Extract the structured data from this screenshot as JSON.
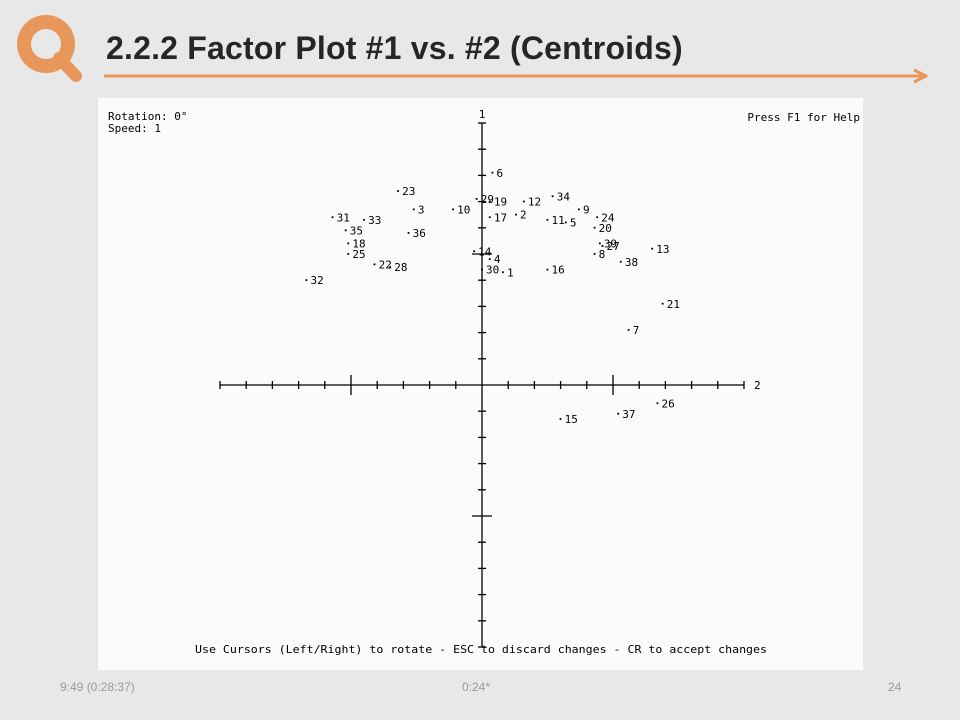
{
  "slide": {
    "title": "2.2.2 Factor Plot #1 vs. #2 (Centroids)",
    "accent_color": "#e8975a",
    "logo_icon": "q-letter-logo",
    "footer": {
      "left": "9:49  (0:28:37)",
      "center": "0:24*",
      "right": "24"
    }
  },
  "screen": {
    "rotation_label": "Rotation: 0°",
    "speed_label": "Speed: 1",
    "help_label": "Press F1 for Help",
    "instructions": "Use Cursors (Left/Right) to rotate - ESC to discard changes - CR to accept changes"
  },
  "chart_data": {
    "type": "scatter",
    "title": "",
    "xlabel": "2",
    "ylabel": "1",
    "xlim": [
      -1,
      1
    ],
    "ylim": [
      -1,
      1
    ],
    "grid": false,
    "points": [
      {
        "label": "1",
        "x": 0.08,
        "y": 0.43
      },
      {
        "label": "2",
        "x": 0.13,
        "y": 0.65
      },
      {
        "label": "3",
        "x": -0.26,
        "y": 0.67
      },
      {
        "label": "4",
        "x": 0.03,
        "y": 0.48
      },
      {
        "label": "5",
        "x": 0.32,
        "y": 0.62
      },
      {
        "label": "6",
        "x": 0.04,
        "y": 0.81
      },
      {
        "label": "7",
        "x": 0.56,
        "y": 0.21
      },
      {
        "label": "8",
        "x": 0.43,
        "y": 0.5
      },
      {
        "label": "9",
        "x": 0.37,
        "y": 0.67
      },
      {
        "label": "10",
        "x": -0.11,
        "y": 0.67
      },
      {
        "label": "11",
        "x": 0.25,
        "y": 0.63
      },
      {
        "label": "12",
        "x": 0.16,
        "y": 0.7
      },
      {
        "label": "13",
        "x": 0.65,
        "y": 0.52
      },
      {
        "label": "14",
        "x": -0.03,
        "y": 0.51
      },
      {
        "label": "15",
        "x": 0.3,
        "y": -0.13
      },
      {
        "label": "16",
        "x": 0.25,
        "y": 0.44
      },
      {
        "label": "17",
        "x": 0.03,
        "y": 0.64
      },
      {
        "label": "18",
        "x": -0.51,
        "y": 0.54
      },
      {
        "label": "19",
        "x": 0.03,
        "y": 0.7
      },
      {
        "label": "20",
        "x": 0.43,
        "y": 0.6
      },
      {
        "label": "21",
        "x": 0.69,
        "y": 0.31
      },
      {
        "label": "22",
        "x": -0.41,
        "y": 0.46
      },
      {
        "label": "23",
        "x": -0.32,
        "y": 0.74
      },
      {
        "label": "24",
        "x": 0.44,
        "y": 0.64
      },
      {
        "label": "25",
        "x": -0.51,
        "y": 0.5
      },
      {
        "label": "26",
        "x": 0.67,
        "y": -0.07
      },
      {
        "label": "27",
        "x": 0.46,
        "y": 0.53
      },
      {
        "label": "28",
        "x": -0.35,
        "y": 0.45
      },
      {
        "label": "29",
        "x": -0.02,
        "y": 0.71
      },
      {
        "label": "30",
        "x": 0.0,
        "y": 0.44
      },
      {
        "label": "31",
        "x": -0.57,
        "y": 0.64
      },
      {
        "label": "32",
        "x": -0.67,
        "y": 0.4
      },
      {
        "label": "33",
        "x": -0.45,
        "y": 0.63
      },
      {
        "label": "34",
        "x": 0.27,
        "y": 0.72
      },
      {
        "label": "35",
        "x": -0.52,
        "y": 0.59
      },
      {
        "label": "36",
        "x": -0.28,
        "y": 0.58
      },
      {
        "label": "37",
        "x": 0.52,
        "y": -0.11
      },
      {
        "label": "38",
        "x": 0.53,
        "y": 0.47
      },
      {
        "label": "39",
        "x": 0.45,
        "y": 0.54
      }
    ]
  }
}
